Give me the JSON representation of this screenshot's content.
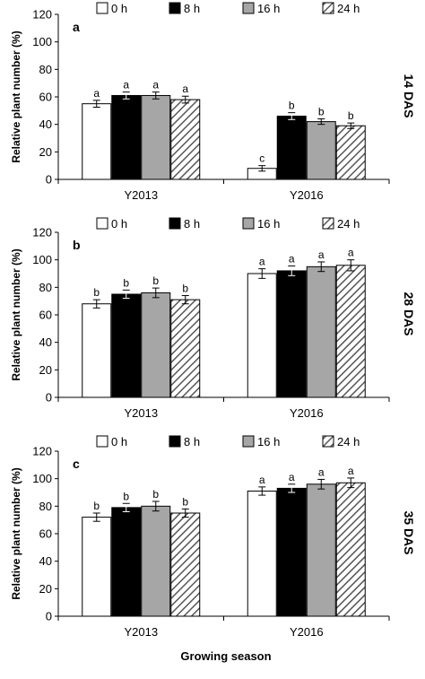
{
  "figure": {
    "x_axis_title": "Growing season",
    "legend": [
      "0 h",
      "8 h",
      "16 h",
      "24 h"
    ],
    "colors": {
      "0 h": "#ffffff",
      "8 h": "#000000",
      "16 h": "#a6a6a6",
      "24 h": "hatched"
    }
  },
  "chart_data": [
    {
      "type": "bar",
      "panel_label": "a",
      "side_label": "14 DAS",
      "ylabel": "Relative plant number (%)",
      "ylim": [
        0,
        120
      ],
      "yticks": [
        0,
        20,
        40,
        60,
        80,
        100,
        120
      ],
      "categories": [
        "Y2013",
        "Y2016"
      ],
      "grid": false,
      "legend_position": "top",
      "series": [
        {
          "name": "0 h",
          "values": [
            55,
            8
          ],
          "errors": [
            2.5,
            2
          ],
          "letters": [
            "a",
            "c"
          ]
        },
        {
          "name": "8 h",
          "values": [
            61,
            46
          ],
          "errors": [
            2.5,
            2.5
          ],
          "letters": [
            "a",
            "b"
          ]
        },
        {
          "name": "16 h",
          "values": [
            61,
            42
          ],
          "errors": [
            2.5,
            2
          ],
          "letters": [
            "a",
            "b"
          ]
        },
        {
          "name": "24 h",
          "values": [
            58,
            39
          ],
          "errors": [
            2.5,
            2
          ],
          "letters": [
            "a",
            "b"
          ]
        }
      ]
    },
    {
      "type": "bar",
      "panel_label": "b",
      "side_label": "28 DAS",
      "ylabel": "Relative plant number (%)",
      "ylim": [
        0,
        120
      ],
      "yticks": [
        0,
        20,
        40,
        60,
        80,
        100,
        120
      ],
      "categories": [
        "Y2013",
        "Y2016"
      ],
      "grid": false,
      "legend_position": "top",
      "series": [
        {
          "name": "0 h",
          "values": [
            68,
            90
          ],
          "errors": [
            3,
            3.5
          ],
          "letters": [
            "b",
            "a"
          ]
        },
        {
          "name": "8 h",
          "values": [
            75,
            92
          ],
          "errors": [
            3,
            3.5
          ],
          "letters": [
            "b",
            "a"
          ]
        },
        {
          "name": "16 h",
          "values": [
            76,
            95
          ],
          "errors": [
            3.5,
            3.5
          ],
          "letters": [
            "b",
            "a"
          ]
        },
        {
          "name": "24 h",
          "values": [
            71,
            96
          ],
          "errors": [
            3,
            4
          ],
          "letters": [
            "b",
            "a"
          ]
        }
      ]
    },
    {
      "type": "bar",
      "panel_label": "c",
      "side_label": "35 DAS",
      "ylabel": "Relative plant number (%)",
      "ylim": [
        0,
        120
      ],
      "yticks": [
        0,
        20,
        40,
        60,
        80,
        100,
        120
      ],
      "categories": [
        "Y2013",
        "Y2016"
      ],
      "grid": false,
      "legend_position": "top",
      "series": [
        {
          "name": "0 h",
          "values": [
            72,
            91
          ],
          "errors": [
            3,
            3
          ],
          "letters": [
            "b",
            "a"
          ]
        },
        {
          "name": "8 h",
          "values": [
            79,
            93
          ],
          "errors": [
            3,
            3
          ],
          "letters": [
            "b",
            "a"
          ]
        },
        {
          "name": "16 h",
          "values": [
            80,
            96
          ],
          "errors": [
            3.5,
            3.5
          ],
          "letters": [
            "b",
            "a"
          ]
        },
        {
          "name": "24 h",
          "values": [
            75,
            97
          ],
          "errors": [
            3,
            3.5
          ],
          "letters": [
            "b",
            "a"
          ]
        }
      ]
    }
  ]
}
